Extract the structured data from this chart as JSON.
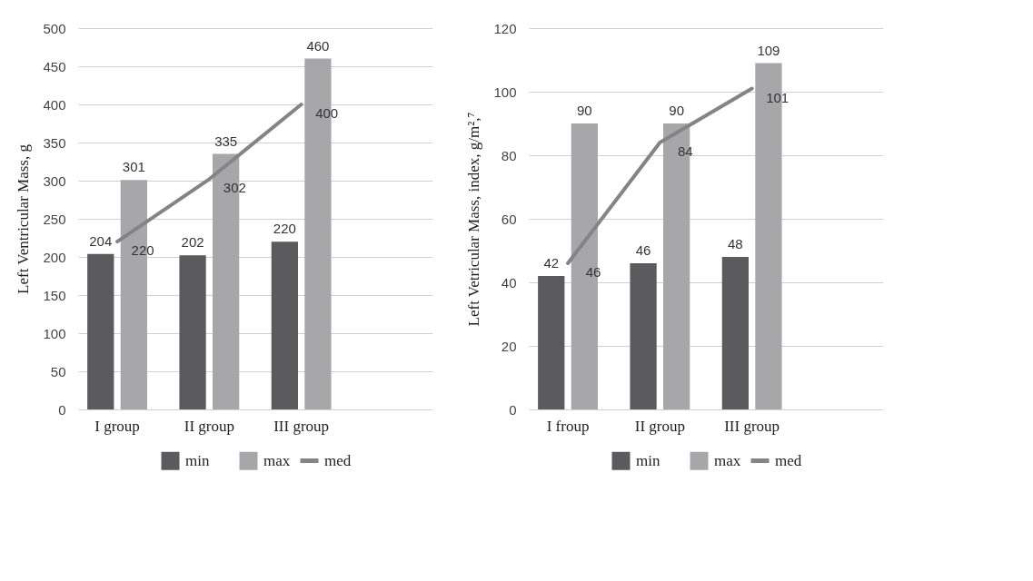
{
  "chart_data": [
    {
      "type": "bar",
      "ylabel": "Left Ventricular Mass, g",
      "categories": [
        "I group",
        "II group",
        "III group",
        null
      ],
      "series": [
        {
          "name": "min",
          "color": "#5b5b5e",
          "values": [
            204,
            202,
            220,
            null
          ]
        },
        {
          "name": "max",
          "color": "#a7a7aa",
          "values": [
            301,
            335,
            460,
            null
          ]
        },
        {
          "name": "med",
          "type": "line",
          "color": "#848487",
          "values": [
            220,
            302,
            400,
            null
          ]
        }
      ],
      "ylim": [
        0,
        500
      ],
      "yticks": [
        0,
        50,
        100,
        150,
        200,
        250,
        300,
        350,
        400,
        450,
        500
      ],
      "grid": "y",
      "legend": "bottom",
      "data_labels": true
    },
    {
      "type": "bar",
      "ylabel": "Left Vetricular Mass, index, g/m²,⁷",
      "categories": [
        "I froup",
        "II group",
        "III group",
        null
      ],
      "series": [
        {
          "name": "min",
          "color": "#5b5b5e",
          "values": [
            42,
            46,
            48,
            null
          ]
        },
        {
          "name": "max",
          "color": "#a7a7aa",
          "values": [
            90,
            90,
            109,
            null
          ]
        },
        {
          "name": "med",
          "type": "line",
          "color": "#848487",
          "values": [
            46,
            84,
            101,
            null
          ]
        }
      ],
      "ylim": [
        0,
        120
      ],
      "yticks": [
        0,
        20,
        40,
        60,
        80,
        100,
        120
      ],
      "grid": "y",
      "legend": "bottom",
      "data_labels": true
    }
  ]
}
